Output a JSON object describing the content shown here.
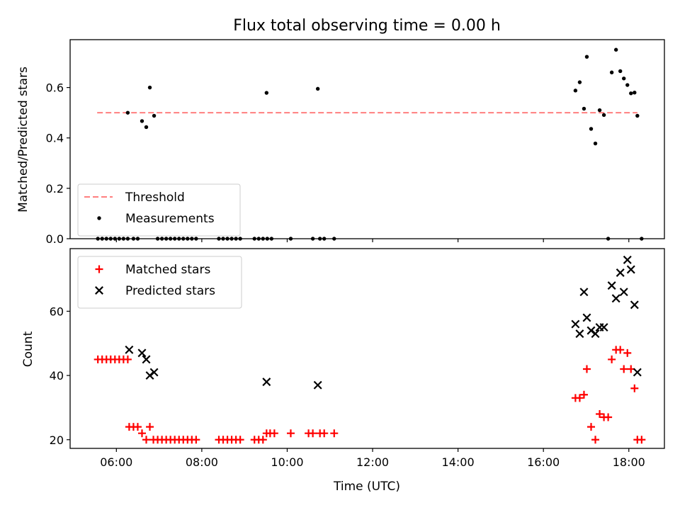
{
  "chart_data": [
    {
      "type": "scatter",
      "title": "Flux total observing time = 0.00 h",
      "ylabel": "Matched/Predicted stars",
      "xlabel": "",
      "xlim": [
        "04:55",
        "18:50"
      ],
      "ylim": [
        0.0,
        0.79
      ],
      "xticks": [
        "06:00",
        "08:00",
        "10:00",
        "12:00",
        "14:00",
        "16:00",
        "18:00"
      ],
      "yticks": [
        "0.0",
        "0.2",
        "0.4",
        "0.6"
      ],
      "legend": {
        "position": "lower-left",
        "entries": [
          "Threshold",
          "Measurements"
        ]
      },
      "threshold": {
        "name": "Threshold",
        "x": [
          "05:33",
          "18:12"
        ],
        "y": 0.5,
        "color": "#ff7f7f"
      },
      "series": [
        {
          "name": "Measurements",
          "color": "#000000",
          "points": [
            [
              "05:34",
              0
            ],
            [
              "05:40",
              0
            ],
            [
              "05:46",
              0
            ],
            [
              "05:52",
              0
            ],
            [
              "05:58",
              0
            ],
            [
              "06:04",
              0
            ],
            [
              "06:10",
              0
            ],
            [
              "06:16",
              0
            ],
            [
              "06:24",
              0
            ],
            [
              "06:30",
              0
            ],
            [
              "06:16",
              0.5
            ],
            [
              "06:36",
              0.467
            ],
            [
              "06:42",
              0.443
            ],
            [
              "06:47",
              0.6
            ],
            [
              "06:53",
              0.488
            ],
            [
              "06:58",
              0
            ],
            [
              "07:04",
              0
            ],
            [
              "07:10",
              0
            ],
            [
              "07:16",
              0
            ],
            [
              "07:22",
              0
            ],
            [
              "07:28",
              0
            ],
            [
              "07:34",
              0
            ],
            [
              "07:40",
              0
            ],
            [
              "07:46",
              0
            ],
            [
              "07:52",
              0
            ],
            [
              "08:24",
              0
            ],
            [
              "08:30",
              0
            ],
            [
              "08:36",
              0
            ],
            [
              "08:42",
              0
            ],
            [
              "08:48",
              0
            ],
            [
              "08:54",
              0
            ],
            [
              "09:14",
              0
            ],
            [
              "09:20",
              0
            ],
            [
              "09:26",
              0
            ],
            [
              "09:32",
              0
            ],
            [
              "09:38",
              0
            ],
            [
              "09:31",
              0.579
            ],
            [
              "10:05",
              0
            ],
            [
              "10:36",
              0
            ],
            [
              "10:46",
              0
            ],
            [
              "10:52",
              0
            ],
            [
              "11:06",
              0
            ],
            [
              "10:43",
              0.595
            ],
            [
              "16:45",
              0.588
            ],
            [
              "16:51",
              0.621
            ],
            [
              "16:57",
              0.516
            ],
            [
              "17:01",
              0.722
            ],
            [
              "17:07",
              0.436
            ],
            [
              "17:13",
              0.378
            ],
            [
              "17:19",
              0.51
            ],
            [
              "17:25",
              0.491
            ],
            [
              "17:31",
              0
            ],
            [
              "17:36",
              0.66
            ],
            [
              "17:42",
              0.75
            ],
            [
              "17:48",
              0.665
            ],
            [
              "17:53",
              0.636
            ],
            [
              "17:58",
              0.61
            ],
            [
              "18:03",
              0.577
            ],
            [
              "18:08",
              0.58
            ],
            [
              "18:12",
              0.488
            ],
            [
              "18:18",
              0
            ]
          ]
        }
      ]
    },
    {
      "type": "scatter",
      "title": "",
      "ylabel": "Count",
      "xlabel": "Time (UTC)",
      "xlim": [
        "04:55",
        "18:50"
      ],
      "ylim": [
        17.3,
        79.5
      ],
      "xticks": [
        "06:00",
        "08:00",
        "10:00",
        "12:00",
        "14:00",
        "16:00",
        "18:00"
      ],
      "yticks": [
        "20",
        "40",
        "60"
      ],
      "legend": {
        "position": "upper-left",
        "entries": [
          "Matched stars",
          "Predicted stars"
        ]
      },
      "series": [
        {
          "name": "Matched stars",
          "marker": "+",
          "color": "#ff0000",
          "points": [
            [
              "05:34",
              45
            ],
            [
              "05:40",
              45
            ],
            [
              "05:46",
              45
            ],
            [
              "05:52",
              45
            ],
            [
              "05:58",
              45
            ],
            [
              "06:04",
              45
            ],
            [
              "06:10",
              45
            ],
            [
              "06:16",
              45
            ],
            [
              "06:18",
              24
            ],
            [
              "06:24",
              24
            ],
            [
              "06:30",
              24
            ],
            [
              "06:36",
              22
            ],
            [
              "06:42",
              20
            ],
            [
              "06:47",
              24
            ],
            [
              "06:52",
              20
            ],
            [
              "06:58",
              20
            ],
            [
              "07:04",
              20
            ],
            [
              "07:10",
              20
            ],
            [
              "07:16",
              20
            ],
            [
              "07:22",
              20
            ],
            [
              "07:28",
              20
            ],
            [
              "07:34",
              20
            ],
            [
              "07:40",
              20
            ],
            [
              "07:46",
              20
            ],
            [
              "07:52",
              20
            ],
            [
              "08:24",
              20
            ],
            [
              "08:30",
              20
            ],
            [
              "08:36",
              20
            ],
            [
              "08:42",
              20
            ],
            [
              "08:48",
              20
            ],
            [
              "08:54",
              20
            ],
            [
              "09:14",
              20
            ],
            [
              "09:20",
              20
            ],
            [
              "09:26",
              20
            ],
            [
              "09:31",
              22
            ],
            [
              "09:36",
              22
            ],
            [
              "09:42",
              22
            ],
            [
              "10:05",
              22
            ],
            [
              "10:30",
              22
            ],
            [
              "10:36",
              22
            ],
            [
              "10:46",
              22
            ],
            [
              "10:52",
              22
            ],
            [
              "11:06",
              22
            ],
            [
              "16:45",
              33
            ],
            [
              "16:51",
              33
            ],
            [
              "16:57",
              34
            ],
            [
              "17:01",
              42
            ],
            [
              "17:07",
              24
            ],
            [
              "17:13",
              20
            ],
            [
              "17:19",
              28
            ],
            [
              "17:25",
              27
            ],
            [
              "17:31",
              27
            ],
            [
              "17:36",
              45
            ],
            [
              "17:42",
              48
            ],
            [
              "17:48",
              48
            ],
            [
              "17:53",
              42
            ],
            [
              "17:58",
              47
            ],
            [
              "18:03",
              42
            ],
            [
              "18:08",
              36
            ],
            [
              "18:12",
              20
            ],
            [
              "18:18",
              20
            ]
          ]
        },
        {
          "name": "Predicted stars",
          "marker": "x",
          "color": "#000000",
          "points": [
            [
              "06:18",
              48
            ],
            [
              "06:36",
              47
            ],
            [
              "06:42",
              45
            ],
            [
              "06:47",
              40
            ],
            [
              "06:53",
              41
            ],
            [
              "09:31",
              38
            ],
            [
              "10:43",
              37
            ],
            [
              "16:45",
              56
            ],
            [
              "16:51",
              53
            ],
            [
              "16:57",
              66
            ],
            [
              "17:01",
              58
            ],
            [
              "17:07",
              54
            ],
            [
              "17:13",
              53
            ],
            [
              "17:19",
              55
            ],
            [
              "17:25",
              55
            ],
            [
              "17:36",
              68
            ],
            [
              "17:42",
              64
            ],
            [
              "17:48",
              72
            ],
            [
              "17:53",
              66
            ],
            [
              "17:58",
              76
            ],
            [
              "18:03",
              73
            ],
            [
              "18:08",
              62
            ],
            [
              "18:12",
              41
            ]
          ]
        }
      ]
    }
  ]
}
